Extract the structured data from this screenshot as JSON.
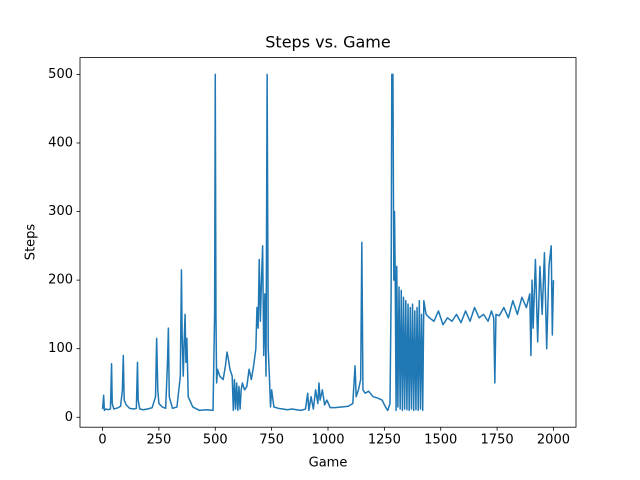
{
  "chart_data": {
    "type": "line",
    "title": "Steps vs. Game",
    "x_label": "Game",
    "y_label": "Steps",
    "color": "#1f77b4",
    "xlim": [
      -100,
      2100
    ],
    "ylim": [
      -14.5,
      524.5
    ],
    "xticks": [
      0,
      250,
      500,
      750,
      1000,
      1250,
      1500,
      1750,
      2000
    ],
    "yticks": [
      0,
      100,
      200,
      300,
      400,
      500
    ],
    "x": [
      0,
      5,
      8,
      15,
      25,
      35,
      40,
      43,
      50,
      60,
      70,
      80,
      88,
      92,
      96,
      105,
      120,
      140,
      150,
      155,
      158,
      165,
      180,
      200,
      220,
      235,
      240,
      245,
      250,
      265,
      280,
      288,
      292,
      296,
      310,
      330,
      345,
      350,
      353,
      358,
      362,
      366,
      370,
      374,
      380,
      400,
      430,
      460,
      490,
      497,
      500,
      503,
      506,
      510,
      520,
      535,
      545,
      552,
      558,
      565,
      575,
      580,
      585,
      590,
      595,
      600,
      605,
      610,
      615,
      620,
      630,
      640,
      650,
      660,
      670,
      680,
      685,
      690,
      695,
      700,
      705,
      710,
      715,
      720,
      725,
      730,
      735,
      740,
      745,
      750,
      760,
      780,
      800,
      820,
      840,
      860,
      880,
      900,
      910,
      915,
      925,
      935,
      945,
      955,
      960,
      965,
      975,
      985,
      995,
      1010,
      1030,
      1060,
      1090,
      1110,
      1120,
      1125,
      1135,
      1145,
      1150,
      1155,
      1165,
      1180,
      1200,
      1220,
      1240,
      1255,
      1265,
      1275,
      1280,
      1283,
      1288,
      1292,
      1295,
      1298,
      1302,
      1305,
      1310,
      1315,
      1320,
      1325,
      1330,
      1335,
      1340,
      1345,
      1350,
      1355,
      1360,
      1365,
      1370,
      1375,
      1380,
      1385,
      1390,
      1395,
      1400,
      1405,
      1410,
      1415,
      1420,
      1425,
      1435,
      1450,
      1470,
      1490,
      1510,
      1530,
      1550,
      1570,
      1590,
      1610,
      1630,
      1650,
      1670,
      1690,
      1710,
      1725,
      1735,
      1740,
      1745,
      1760,
      1780,
      1800,
      1820,
      1840,
      1860,
      1880,
      1895,
      1900,
      1905,
      1910,
      1920,
      1930,
      1940,
      1950,
      1960,
      1970,
      1980,
      1990,
      1995,
      2000
    ],
    "values": [
      12,
      32,
      10,
      12,
      11,
      12,
      78,
      20,
      12,
      13,
      14,
      16,
      40,
      90,
      25,
      18,
      13,
      12,
      13,
      80,
      25,
      12,
      11,
      12,
      14,
      30,
      115,
      40,
      20,
      15,
      13,
      80,
      130,
      30,
      13,
      15,
      60,
      215,
      120,
      60,
      110,
      150,
      80,
      115,
      30,
      15,
      10,
      11,
      10,
      150,
      500,
      150,
      50,
      70,
      60,
      55,
      75,
      95,
      85,
      70,
      60,
      10,
      55,
      12,
      50,
      10,
      45,
      12,
      40,
      50,
      40,
      45,
      70,
      55,
      75,
      100,
      160,
      130,
      230,
      140,
      200,
      250,
      90,
      180,
      60,
      500,
      100,
      60,
      15,
      40,
      15,
      13,
      12,
      11,
      12,
      11,
      10,
      12,
      35,
      10,
      30,
      12,
      40,
      20,
      50,
      25,
      40,
      18,
      25,
      14,
      14,
      15,
      16,
      20,
      75,
      30,
      40,
      55,
      255,
      40,
      35,
      38,
      30,
      28,
      25,
      15,
      10,
      20,
      180,
      500,
      500,
      200,
      300,
      210,
      10,
      220,
      15,
      190,
      12,
      185,
      10,
      175,
      12,
      170,
      11,
      165,
      10,
      160,
      12,
      165,
      10,
      155,
      11,
      160,
      10,
      170,
      12,
      150,
      10,
      170,
      150,
      145,
      140,
      155,
      135,
      145,
      140,
      150,
      138,
      155,
      140,
      160,
      145,
      150,
      140,
      155,
      145,
      50,
      150,
      148,
      160,
      145,
      170,
      150,
      175,
      160,
      180,
      90,
      200,
      130,
      230,
      110,
      220,
      150,
      240,
      100,
      220,
      250,
      120,
      200
    ]
  }
}
